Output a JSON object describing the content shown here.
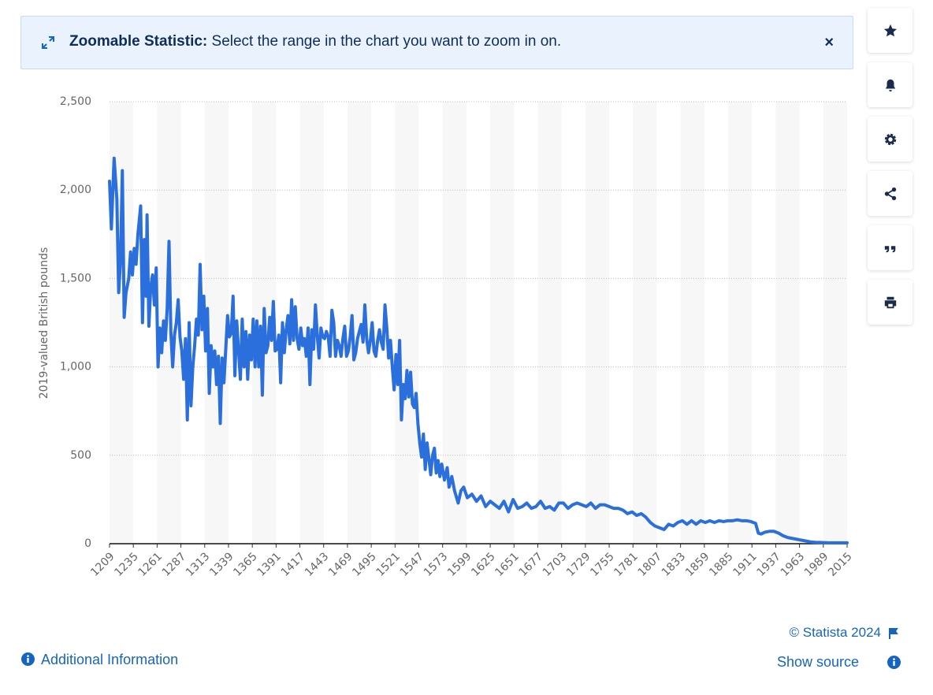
{
  "banner": {
    "title": "Zoomable Statistic:",
    "text": "Select the range in the chart you want to zoom in on."
  },
  "chart_data": {
    "type": "line",
    "y_label": "2019-valued British pounds",
    "color": "#2a6fdb",
    "grid": true,
    "xlim": [
      1209,
      2015
    ],
    "ylim": [
      0,
      2500
    ],
    "xticks": [
      1209,
      1235,
      1261,
      1287,
      1313,
      1339,
      1365,
      1391,
      1417,
      1443,
      1469,
      1495,
      1521,
      1547,
      1573,
      1599,
      1625,
      1651,
      1677,
      1703,
      1729,
      1755,
      1781,
      1807,
      1833,
      1859,
      1885,
      1911,
      1937,
      1963,
      1989,
      2015
    ],
    "yticks": [
      0,
      500,
      {
        "value": 1000,
        "label": "1,000"
      },
      {
        "value": 1500,
        "label": "1,500"
      },
      {
        "value": 2000,
        "label": "2,000"
      },
      {
        "value": 2500,
        "label": "2,500"
      }
    ],
    "x": [
      1209,
      1211,
      1214,
      1217,
      1219,
      1221,
      1223,
      1225,
      1227,
      1230,
      1232,
      1234,
      1236,
      1238,
      1240,
      1243,
      1245,
      1247,
      1249,
      1250,
      1252,
      1254,
      1256,
      1258,
      1260,
      1262,
      1264,
      1266,
      1268,
      1270,
      1272,
      1274,
      1276,
      1278,
      1280,
      1282,
      1284,
      1286,
      1288,
      1290,
      1292,
      1294,
      1296,
      1298,
      1300,
      1302,
      1304,
      1306,
      1308,
      1310,
      1312,
      1314,
      1316,
      1318,
      1320,
      1322,
      1324,
      1326,
      1328,
      1330,
      1332,
      1334,
      1336,
      1338,
      1340,
      1342,
      1344,
      1346,
      1348,
      1350,
      1352,
      1354,
      1356,
      1358,
      1360,
      1362,
      1364,
      1366,
      1368,
      1370,
      1372,
      1374,
      1376,
      1378,
      1380,
      1382,
      1384,
      1386,
      1388,
      1390,
      1392,
      1394,
      1396,
      1398,
      1400,
      1402,
      1404,
      1406,
      1408,
      1410,
      1412,
      1414,
      1416,
      1418,
      1420,
      1422,
      1424,
      1426,
      1428,
      1430,
      1432,
      1434,
      1436,
      1438,
      1440,
      1442,
      1444,
      1446,
      1448,
      1450,
      1452,
      1454,
      1456,
      1458,
      1460,
      1462,
      1464,
      1466,
      1468,
      1470,
      1472,
      1474,
      1476,
      1478,
      1480,
      1482,
      1484,
      1486,
      1488,
      1490,
      1492,
      1494,
      1496,
      1498,
      1500,
      1502,
      1504,
      1506,
      1508,
      1510,
      1512,
      1514,
      1516,
      1518,
      1520,
      1522,
      1524,
      1526,
      1528,
      1530,
      1532,
      1534,
      1536,
      1538,
      1540,
      1542,
      1544,
      1546,
      1548,
      1550,
      1552,
      1554,
      1556,
      1558,
      1560,
      1562,
      1564,
      1566,
      1568,
      1570,
      1572,
      1575,
      1578,
      1580,
      1583,
      1586,
      1590,
      1593,
      1596,
      1600,
      1605,
      1610,
      1615,
      1620,
      1625,
      1630,
      1635,
      1640,
      1645,
      1650,
      1655,
      1660,
      1665,
      1670,
      1675,
      1680,
      1685,
      1690,
      1695,
      1700,
      1705,
      1710,
      1715,
      1720,
      1725,
      1730,
      1735,
      1740,
      1745,
      1750,
      1755,
      1760,
      1765,
      1770,
      1775,
      1780,
      1785,
      1790,
      1795,
      1800,
      1805,
      1810,
      1815,
      1820,
      1825,
      1830,
      1835,
      1840,
      1845,
      1850,
      1855,
      1860,
      1865,
      1870,
      1875,
      1880,
      1885,
      1890,
      1895,
      1900,
      1905,
      1910,
      1915,
      1918,
      1921,
      1925,
      1930,
      1935,
      1940,
      1945,
      1950,
      1955,
      1960,
      1965,
      1970,
      1975,
      1980,
      1985,
      1990,
      1995,
      2000,
      2005,
      2010,
      2015
    ],
    "values": [
      2050,
      1780,
      2180,
      1950,
      1420,
      1600,
      2110,
      1280,
      1420,
      1500,
      1650,
      1520,
      1670,
      1580,
      1750,
      1910,
      1250,
      1720,
      1400,
      1860,
      1230,
      1450,
      1520,
      1350,
      1560,
      1000,
      1220,
      1080,
      1260,
      1150,
      1330,
      1710,
      1200,
      1000,
      1180,
      1250,
      1380,
      1170,
      1090,
      930,
      1160,
      700,
      1250,
      780,
      1000,
      1120,
      1270,
      1180,
      1580,
      1210,
      1400,
      1090,
      1330,
      850,
      1120,
      1000,
      1090,
      900,
      1060,
      680,
      1050,
      910,
      1100,
      1290,
      1170,
      1190,
      1400,
      950,
      1260,
      1090,
      930,
      1270,
      1000,
      1200,
      930,
      1180,
      1040,
      1270,
      1000,
      1260,
      1000,
      1230,
      840,
      1330,
      1080,
      1120,
      1280,
      1150,
      1370,
      1090,
      1100,
      1180,
      910,
      1250,
      1080,
      1210,
      1290,
      1130,
      1380,
      1150,
      1340,
      1160,
      1100,
      1220,
      1120,
      1160,
      1060,
      1220,
      900,
      1210,
      1100,
      1350,
      1180,
      1050,
      1220,
      1170,
      1160,
      1200,
      1170,
      1060,
      1320,
      1250,
      1060,
      1150,
      1120,
      1060,
      1160,
      1230,
      1060,
      1090,
      1170,
      1290,
      1040,
      1080,
      1160,
      1200,
      1240,
      1140,
      1350,
      1160,
      1080,
      1150,
      1250,
      1090,
      1060,
      1150,
      1210,
      1140,
      1100,
      1350,
      1220,
      1050,
      1150,
      1000,
      870,
      1070,
      900,
      1150,
      700,
      900,
      820,
      980,
      830,
      970,
      790,
      770,
      850,
      680,
      570,
      490,
      620,
      420,
      570,
      480,
      390,
      500,
      540,
      400,
      470,
      380,
      450,
      360,
      430,
      320,
      380,
      300,
      230,
      300,
      320,
      260,
      280,
      240,
      270,
      210,
      240,
      220,
      200,
      240,
      180,
      250,
      200,
      210,
      230,
      200,
      210,
      240,
      200,
      210,
      190,
      230,
      230,
      200,
      220,
      230,
      220,
      210,
      230,
      200,
      220,
      220,
      210,
      200,
      200,
      190,
      170,
      180,
      160,
      170,
      150,
      120,
      100,
      90,
      80,
      110,
      100,
      120,
      130,
      110,
      130,
      110,
      130,
      120,
      130,
      120,
      130,
      125,
      130,
      130,
      135,
      130,
      130,
      125,
      115,
      60,
      55,
      65,
      70,
      70,
      60,
      45,
      35,
      30,
      25,
      20,
      15,
      10,
      8,
      7,
      6,
      5,
      5,
      5,
      5,
      5
    ]
  },
  "footer": {
    "copyright": "© Statista 2024",
    "show_source": "Show source",
    "additional_info": "Additional Information"
  }
}
